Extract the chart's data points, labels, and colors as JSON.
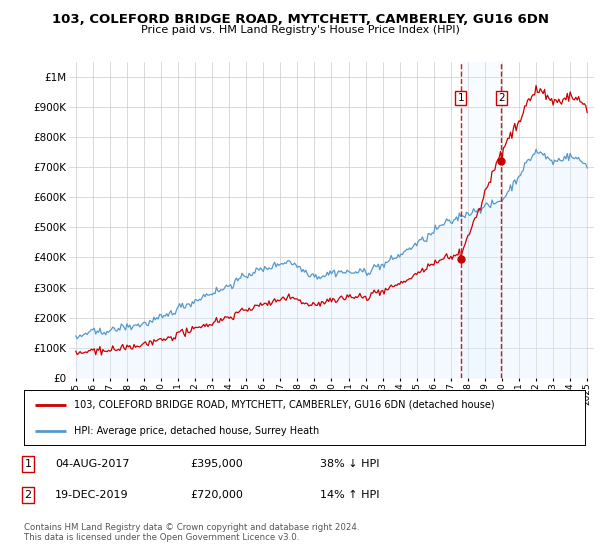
{
  "title": "103, COLEFORD BRIDGE ROAD, MYTCHETT, CAMBERLEY, GU16 6DN",
  "subtitle": "Price paid vs. HM Land Registry's House Price Index (HPI)",
  "sale1_date": "04-AUG-2017",
  "sale1_price": 395000,
  "sale1_label": "38% ↓ HPI",
  "sale2_date": "19-DEC-2019",
  "sale2_price": 720000,
  "sale2_label": "14% ↑ HPI",
  "legend_line1": "103, COLEFORD BRIDGE ROAD, MYTCHETT, CAMBERLEY, GU16 6DN (detached house)",
  "legend_line2": "HPI: Average price, detached house, Surrey Heath",
  "footer": "Contains HM Land Registry data © Crown copyright and database right 2024.\nThis data is licensed under the Open Government Licence v3.0.",
  "property_color": "#cc0000",
  "hpi_color": "#5599cc",
  "hpi_fill_color": "#ddeeff",
  "shade_fill_color": "#ddeeff",
  "marker_color": "#cc0000",
  "sale1_year": 2017.58,
  "sale2_year": 2019.96,
  "ylim_max": 1050000,
  "bg_color": "#ffffff",
  "grid_color": "#cccccc"
}
